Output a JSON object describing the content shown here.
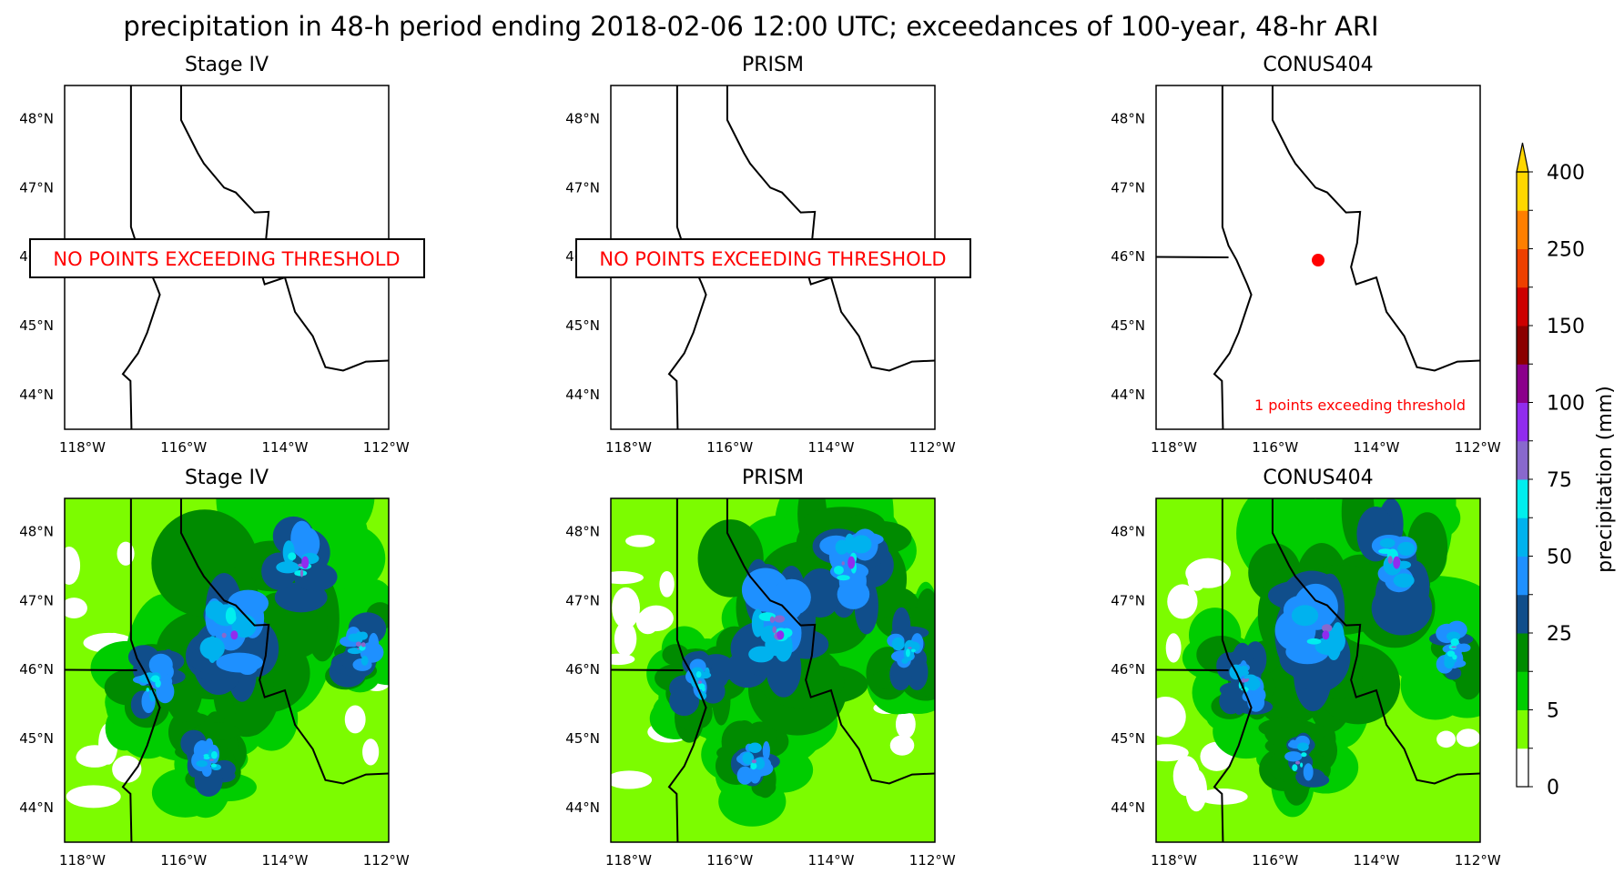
{
  "chart_data": {
    "type": "heatmap",
    "title": "precipitation in 48-h period ending 2018-02-06 12:00 UTC; exceedances of 100-year, 48-hr ARI",
    "grid": false,
    "lon_range": [
      -118.35,
      -111.95
    ],
    "lat_range": [
      43.5,
      48.48
    ],
    "x_ticks": [
      "118°W",
      "116°W",
      "114°W",
      "112°W"
    ],
    "x_tick_values": [
      -118,
      -116,
      -114,
      -112
    ],
    "y_ticks": [
      "44°N",
      "45°N",
      "46°N",
      "47°N",
      "48°N"
    ],
    "y_tick_values": [
      44,
      45,
      46,
      47,
      48
    ],
    "panels": [
      {
        "row": "exceedance",
        "title": "Stage IV",
        "annotation": "NO POINTS EXCEEDING THRESHOLD",
        "exceedance_points": []
      },
      {
        "row": "exceedance",
        "title": "PRISM",
        "annotation": "NO POINTS EXCEEDING THRESHOLD",
        "exceedance_points": []
      },
      {
        "row": "exceedance",
        "title": "CONUS404",
        "annotation": "1 points exceeding threshold",
        "exceedance_points": [
          {
            "lon": -115.15,
            "lat": 45.95
          }
        ]
      },
      {
        "row": "precipitation",
        "title": "Stage IV",
        "max_category_mm": "100"
      },
      {
        "row": "precipitation",
        "title": "PRISM",
        "max_category_mm": "100"
      },
      {
        "row": "precipitation",
        "title": "CONUS404",
        "max_category_mm": "100"
      }
    ],
    "colorbar": {
      "label": "precipitation (mm)",
      "ticks": [
        "0",
        "5",
        "25",
        "50",
        "75",
        "100",
        "150",
        "250",
        "400"
      ],
      "extend": "max",
      "colors": [
        "#ffffff",
        "#7cfc00",
        "#00cd00",
        "#008b00",
        "#104e8b",
        "#1e90ff",
        "#00b2ee",
        "#00eeee",
        "#8968cd",
        "#912cee",
        "#8b008b",
        "#8b0000",
        "#cd0000",
        "#ee4000",
        "#ff7f00",
        "#ffd700"
      ]
    },
    "exceedance_marker_color": "#ff0000"
  }
}
